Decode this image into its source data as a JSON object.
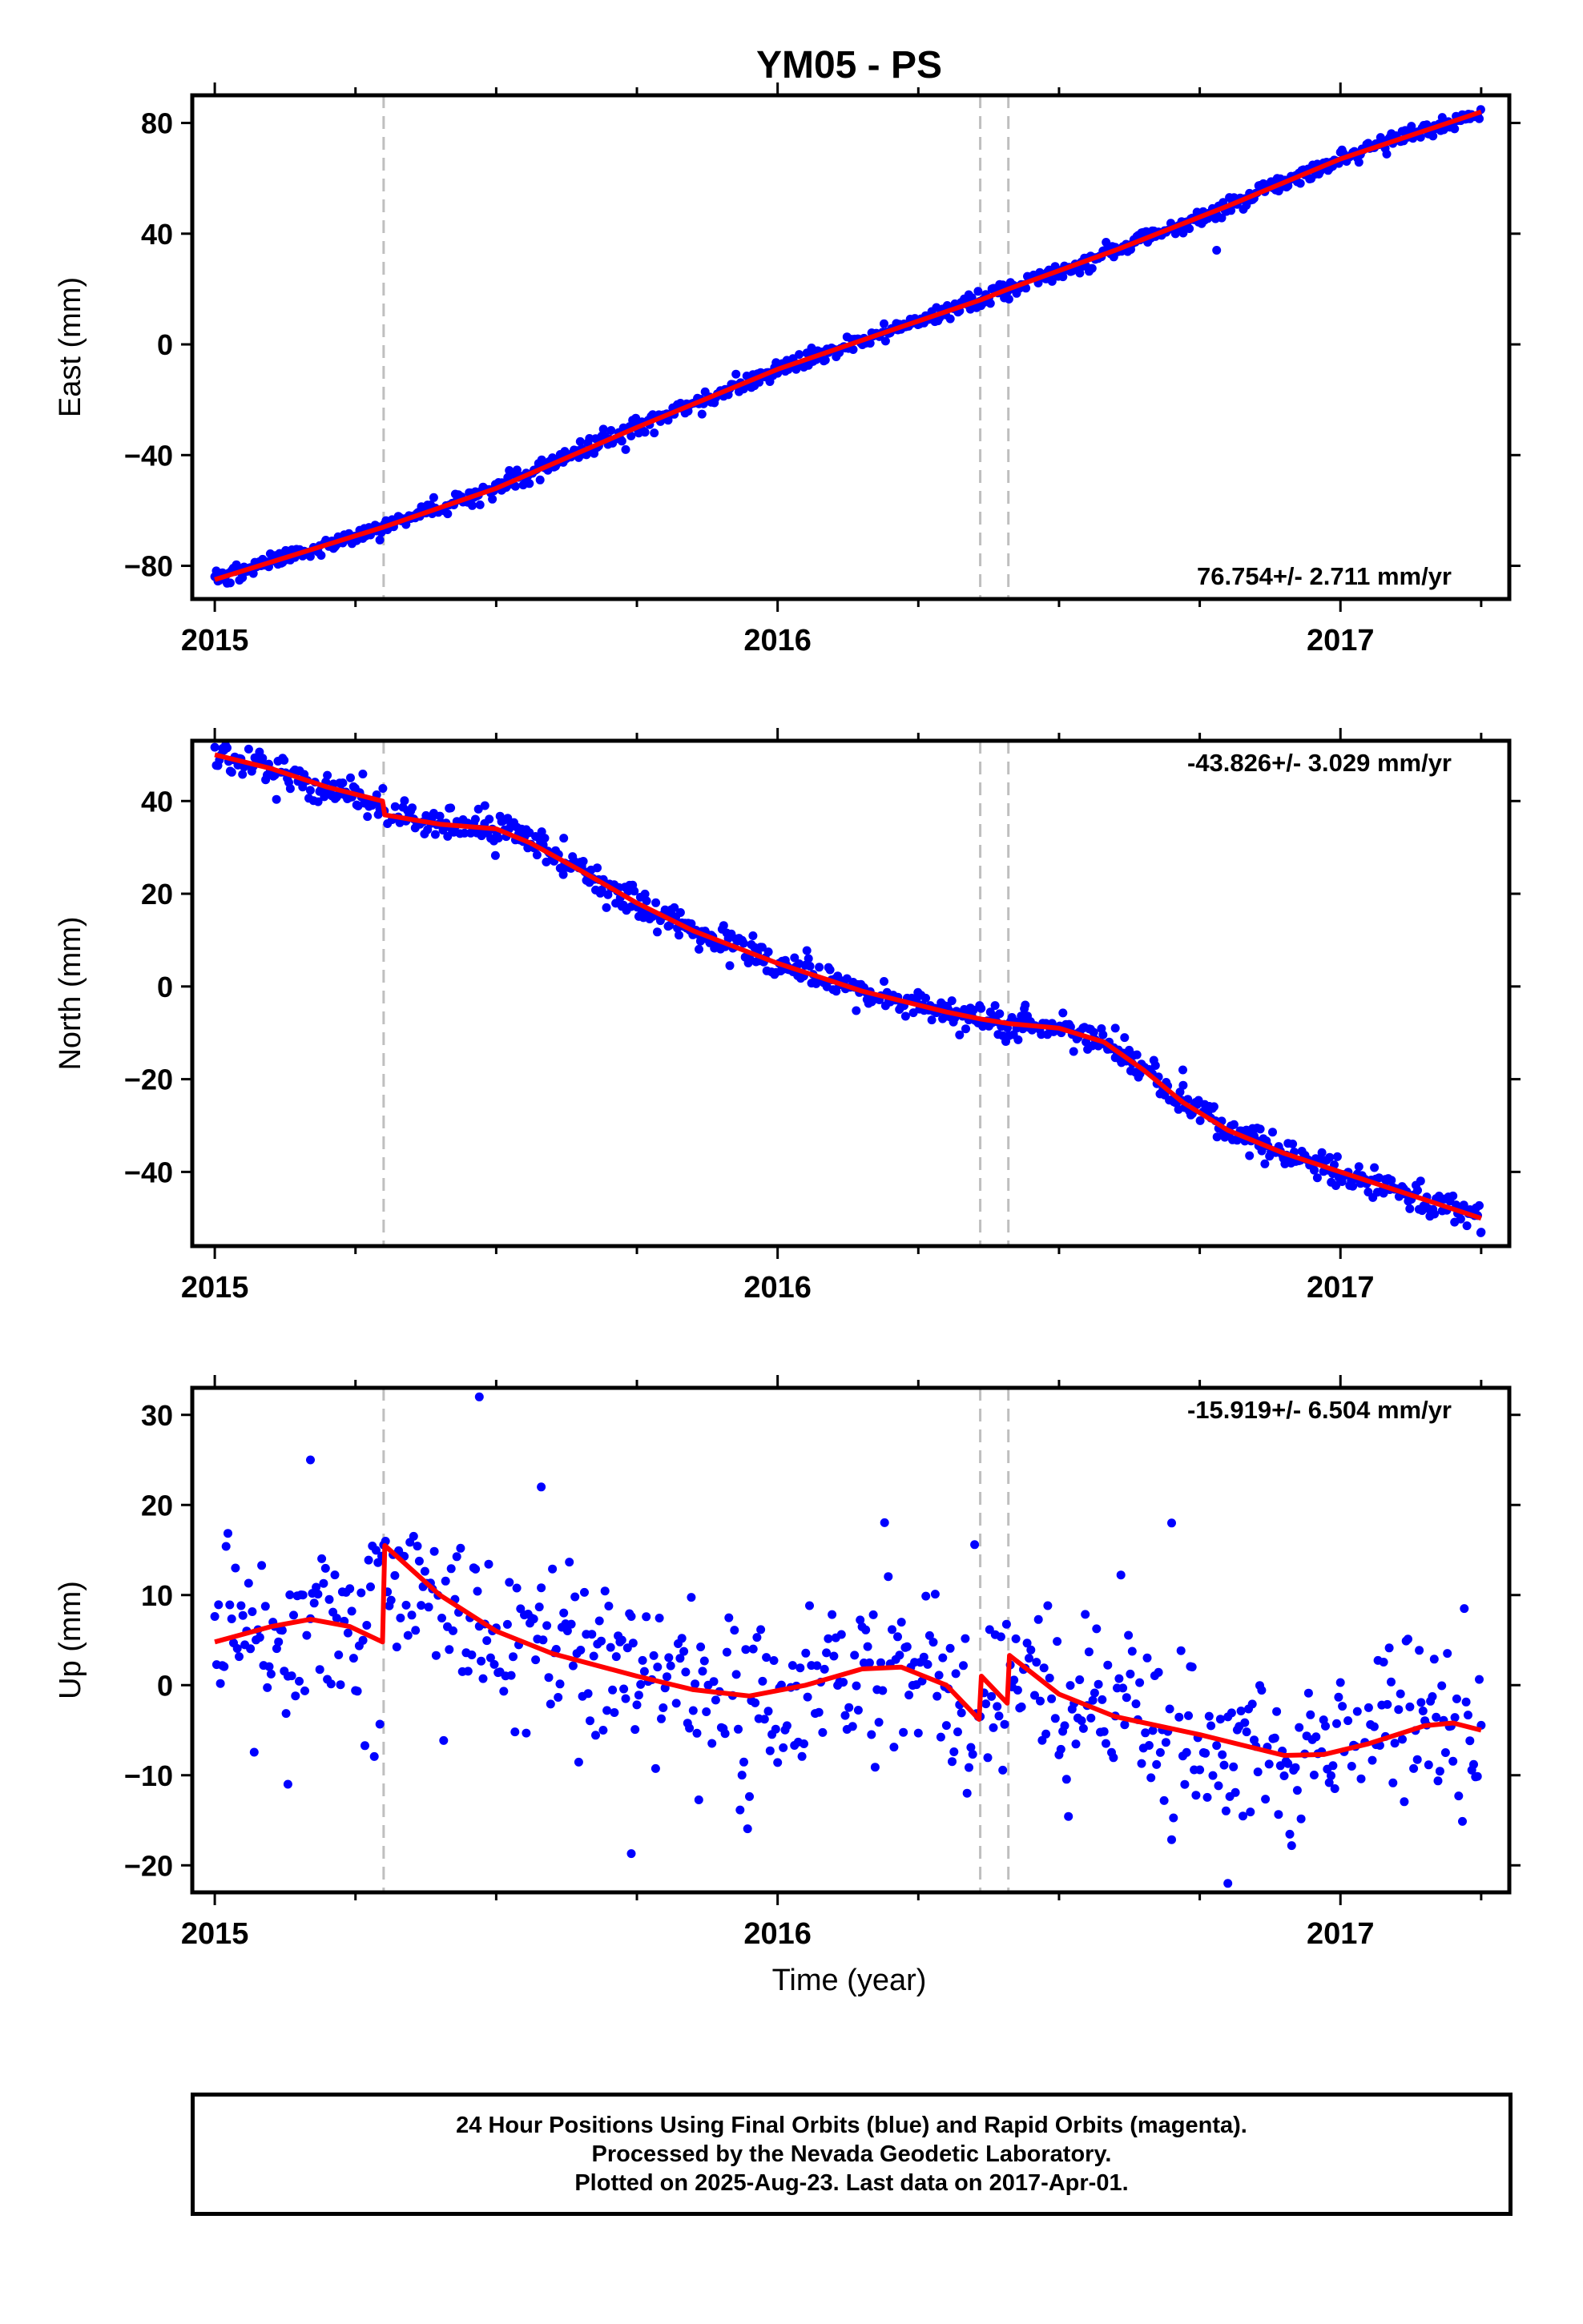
{
  "title": "YM05 - PS",
  "colors": {
    "data": "#0000ff",
    "model": "#ff0000",
    "event_line": "#bfbfbf",
    "frame": "#000000"
  },
  "x_axis": {
    "label": "Time (year)",
    "ticks": [
      "2015",
      "2016",
      "2017"
    ]
  },
  "footer": {
    "line1": "24 Hour Positions Using Final Orbits (blue) and Rapid Orbits (magenta).",
    "line2": "Processed by the Nevada Geodetic Laboratory.",
    "line3": "Plotted on 2025-Aug-23. Last data on 2017-Apr-01."
  },
  "chart_data": [
    {
      "type": "scatter",
      "ylabel": "East (mm)",
      "rate_label": "76.754+/- 2.711 mm/yr",
      "xlim": [
        2014.96,
        2017.3
      ],
      "ylim": [
        -92,
        90
      ],
      "yticks": [
        -80,
        -40,
        0,
        40,
        80
      ],
      "xticks": [
        2015,
        2016,
        2017
      ],
      "events": [
        2015.3,
        2016.36,
        2016.41
      ],
      "model": [
        [
          2015.0,
          -85
        ],
        [
          2015.3,
          -66
        ],
        [
          2015.5,
          -52
        ],
        [
          2015.75,
          -30
        ],
        [
          2016.0,
          -9
        ],
        [
          2016.2,
          5
        ],
        [
          2016.36,
          16
        ],
        [
          2016.41,
          20
        ],
        [
          2016.6,
          34
        ],
        [
          2016.8,
          50
        ],
        [
          2017.0,
          67
        ],
        [
          2017.25,
          84
        ]
      ],
      "noise": 1.6,
      "outliers": [
        [
          2015.51,
          -50
        ],
        [
          2015.73,
          -38
        ],
        [
          2016.78,
          34
        ]
      ]
    },
    {
      "type": "scatter",
      "ylabel": "North (mm)",
      "rate_label": "-43.826+/- 3.029 mm/yr",
      "xlim": [
        2014.96,
        2017.3
      ],
      "ylim": [
        -56,
        53
      ],
      "yticks": [
        -40,
        -20,
        0,
        20,
        40
      ],
      "xticks": [
        2015,
        2016,
        2017
      ],
      "events": [
        2015.3,
        2016.36,
        2016.41
      ],
      "model": [
        [
          2015.0,
          50
        ],
        [
          2015.1,
          47
        ],
        [
          2015.2,
          43
        ],
        [
          2015.298,
          40
        ],
        [
          2015.302,
          37
        ],
        [
          2015.4,
          35
        ],
        [
          2015.5,
          34
        ],
        [
          2015.56,
          31
        ],
        [
          2015.65,
          25
        ],
        [
          2015.75,
          18
        ],
        [
          2015.85,
          12
        ],
        [
          2016.0,
          5
        ],
        [
          2016.15,
          -1
        ],
        [
          2016.3,
          -5.5
        ],
        [
          2016.36,
          -7
        ],
        [
          2016.41,
          -8
        ],
        [
          2016.5,
          -9
        ],
        [
          2016.58,
          -12
        ],
        [
          2016.65,
          -18
        ],
        [
          2016.72,
          -25
        ],
        [
          2016.8,
          -31
        ],
        [
          2016.9,
          -36
        ],
        [
          2017.0,
          -40
        ],
        [
          2017.1,
          -44
        ],
        [
          2017.25,
          -50
        ]
      ],
      "noise": 1.6,
      "outliers": [
        [
          2015.48,
          39
        ],
        [
          2015.62,
          32
        ],
        [
          2016.44,
          -4
        ],
        [
          2016.6,
          -9
        ],
        [
          2016.72,
          -18
        ],
        [
          2017.25,
          -53
        ]
      ]
    },
    {
      "type": "scatter",
      "ylabel": "Up (mm)",
      "rate_label": "-15.919+/- 6.504 mm/yr",
      "xlim": [
        2014.96,
        2017.3
      ],
      "ylim": [
        -23,
        33
      ],
      "yticks": [
        -20,
        -10,
        0,
        10,
        20,
        30
      ],
      "xticks": [
        2015,
        2016,
        2017
      ],
      "events": [
        2015.3,
        2016.36,
        2016.41
      ],
      "model": [
        [
          2015.0,
          4.8
        ],
        [
          2015.1,
          6.5
        ],
        [
          2015.17,
          7.3
        ],
        [
          2015.24,
          6.5
        ],
        [
          2015.298,
          4.8
        ],
        [
          2015.302,
          15.5
        ],
        [
          2015.4,
          10
        ],
        [
          2015.5,
          6
        ],
        [
          2015.6,
          3.5
        ],
        [
          2015.75,
          1
        ],
        [
          2015.85,
          -0.5
        ],
        [
          2015.95,
          -1.2
        ],
        [
          2016.05,
          0
        ],
        [
          2016.15,
          1.8
        ],
        [
          2016.22,
          2
        ],
        [
          2016.3,
          0
        ],
        [
          2016.358,
          -3.8
        ],
        [
          2016.362,
          1
        ],
        [
          2016.408,
          -2
        ],
        [
          2016.412,
          3.3
        ],
        [
          2016.5,
          -1
        ],
        [
          2016.6,
          -3.5
        ],
        [
          2016.75,
          -5.5
        ],
        [
          2016.9,
          -7.8
        ],
        [
          2016.97,
          -7.7
        ],
        [
          2017.05,
          -6.5
        ],
        [
          2017.15,
          -4.5
        ],
        [
          2017.2,
          -4.2
        ],
        [
          2017.25,
          -5
        ]
      ],
      "noise": 5.0,
      "outliers": [
        [
          2015.17,
          25
        ],
        [
          2015.47,
          32
        ],
        [
          2015.58,
          22
        ],
        [
          2015.74,
          -18.7
        ],
        [
          2016.35,
          15.6
        ],
        [
          2016.7,
          18
        ],
        [
          2016.8,
          -22
        ],
        [
          2015.13,
          -11
        ]
      ]
    }
  ]
}
